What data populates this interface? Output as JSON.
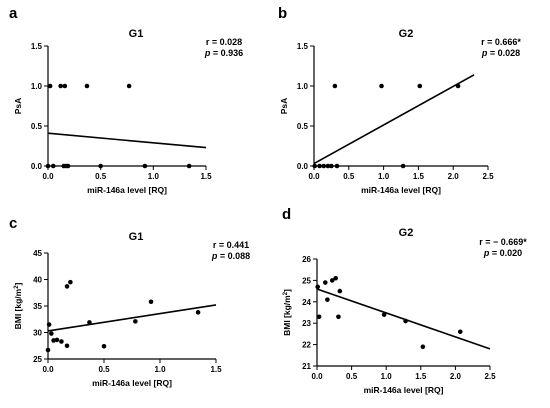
{
  "chart_data": [
    {
      "panel": "a",
      "type": "scatter",
      "title": "G1",
      "xlabel": "miR-146a level [RQ]",
      "ylabel": "PsA",
      "ylabel_sup": "",
      "xlim": [
        0,
        1.5
      ],
      "ylim": [
        0,
        1.5
      ],
      "xticks": [
        0.0,
        0.5,
        1.0,
        1.5
      ],
      "xtick_labels": [
        "0.0",
        "0.5",
        "1.0",
        "1.5"
      ],
      "yticks": [
        0.0,
        0.5,
        1.0,
        1.5
      ],
      "ytick_labels": [
        "0.0",
        "0.5",
        "1.0",
        "1.5"
      ],
      "stat_r": "r = 0.028",
      "stat_p": "= 0.936",
      "p_symbol": "p",
      "points": [
        {
          "x": 0.02,
          "y": 1.0
        },
        {
          "x": 0.12,
          "y": 1.0
        },
        {
          "x": 0.16,
          "y": 1.0
        },
        {
          "x": 0.37,
          "y": 1.0
        },
        {
          "x": 0.77,
          "y": 1.0
        },
        {
          "x": 0.0,
          "y": 0.0
        },
        {
          "x": 0.05,
          "y": 0.0
        },
        {
          "x": 0.15,
          "y": 0.0
        },
        {
          "x": 0.17,
          "y": 0.0
        },
        {
          "x": 0.19,
          "y": 0.0
        },
        {
          "x": 0.5,
          "y": 0.0
        },
        {
          "x": 0.92,
          "y": 0.0
        },
        {
          "x": 1.34,
          "y": 0.0
        }
      ],
      "line": [
        [
          0.0,
          0.41
        ],
        [
          1.5,
          0.23
        ]
      ]
    },
    {
      "panel": "b",
      "type": "scatter",
      "title": "G2",
      "xlabel": "miR-146a level [RQ]",
      "ylabel": "PsA",
      "ylabel_sup": "",
      "xlim": [
        0,
        2.5
      ],
      "ylim": [
        0,
        1.5
      ],
      "xticks": [
        0.0,
        0.5,
        1.0,
        1.5,
        2.0,
        2.5
      ],
      "xtick_labels": [
        "0.0",
        "0.5",
        "1.0",
        "1.5",
        "2.0",
        "2.5"
      ],
      "yticks": [
        0.0,
        0.5,
        1.0,
        1.5
      ],
      "ytick_labels": [
        "0.0",
        "0.5",
        "1.0",
        "1.5"
      ],
      "stat_r": "r = 0.666*",
      "stat_p": "= 0.028",
      "p_symbol": "p",
      "points": [
        {
          "x": 0.3,
          "y": 1.0
        },
        {
          "x": 0.97,
          "y": 1.0
        },
        {
          "x": 1.52,
          "y": 1.0
        },
        {
          "x": 2.07,
          "y": 1.0
        },
        {
          "x": 0.01,
          "y": 0.0
        },
        {
          "x": 0.08,
          "y": 0.0
        },
        {
          "x": 0.14,
          "y": 0.0
        },
        {
          "x": 0.2,
          "y": 0.0
        },
        {
          "x": 0.25,
          "y": 0.0
        },
        {
          "x": 0.33,
          "y": 0.0
        },
        {
          "x": 1.28,
          "y": 0.0
        }
      ],
      "line": [
        [
          0.0,
          0.03
        ],
        [
          2.3,
          1.14
        ]
      ]
    },
    {
      "panel": "c",
      "type": "scatter",
      "title": "G1",
      "xlabel": "miR-146a level [RQ]",
      "ylabel": "BMI [kg/m",
      "ylabel_sup": "2",
      "ylabel_end": "]",
      "xlim": [
        0,
        1.5
      ],
      "ylim": [
        25,
        45
      ],
      "xticks": [
        0.0,
        0.5,
        1.0,
        1.5
      ],
      "xtick_labels": [
        "0.0",
        "0.5",
        "1.0",
        "1.5"
      ],
      "yticks": [
        25,
        30,
        35,
        40,
        45
      ],
      "ytick_labels": [
        "25",
        "30",
        "35",
        "40",
        "45"
      ],
      "stat_r": "r = 0.441",
      "stat_p": "= 0.088",
      "p_symbol": "p",
      "points": [
        {
          "x": 0.0,
          "y": 26.7
        },
        {
          "x": 0.01,
          "y": 31.5
        },
        {
          "x": 0.03,
          "y": 29.8
        },
        {
          "x": 0.05,
          "y": 28.5
        },
        {
          "x": 0.08,
          "y": 28.6
        },
        {
          "x": 0.12,
          "y": 28.3
        },
        {
          "x": 0.17,
          "y": 38.7
        },
        {
          "x": 0.2,
          "y": 39.5
        },
        {
          "x": 0.17,
          "y": 27.5
        },
        {
          "x": 0.37,
          "y": 31.9
        },
        {
          "x": 0.5,
          "y": 27.4
        },
        {
          "x": 0.78,
          "y": 32.1
        },
        {
          "x": 0.92,
          "y": 35.8
        },
        {
          "x": 1.34,
          "y": 33.8
        }
      ],
      "line": [
        [
          0.0,
          30.3
        ],
        [
          1.5,
          35.2
        ]
      ]
    },
    {
      "panel": "d",
      "type": "scatter",
      "title": "G2",
      "xlabel": "miR-146a level [RQ]",
      "ylabel": "BMI [kg/m",
      "ylabel_sup": "2",
      "ylabel_end": "]",
      "xlim": [
        0,
        2.5
      ],
      "ylim": [
        21,
        26
      ],
      "xticks": [
        0.0,
        0.5,
        1.0,
        1.5,
        2.0,
        2.5
      ],
      "xtick_labels": [
        "0.0",
        "0.5",
        "1.0",
        "1.5",
        "2.0",
        "2.5"
      ],
      "yticks": [
        21,
        22,
        23,
        24,
        25,
        26
      ],
      "ytick_labels": [
        "21",
        "22",
        "23",
        "24",
        "25",
        "26"
      ],
      "stat_r": "r = − 0.669*",
      "stat_p": "= 0.020",
      "p_symbol": "p",
      "points": [
        {
          "x": 0.01,
          "y": 24.7
        },
        {
          "x": 0.03,
          "y": 23.3
        },
        {
          "x": 0.12,
          "y": 24.9
        },
        {
          "x": 0.15,
          "y": 24.1
        },
        {
          "x": 0.22,
          "y": 25.0
        },
        {
          "x": 0.27,
          "y": 25.1
        },
        {
          "x": 0.31,
          "y": 23.3
        },
        {
          "x": 0.33,
          "y": 24.5
        },
        {
          "x": 0.97,
          "y": 23.4
        },
        {
          "x": 1.28,
          "y": 23.1
        },
        {
          "x": 1.53,
          "y": 21.9
        },
        {
          "x": 2.07,
          "y": 22.6
        }
      ],
      "line": [
        [
          0.0,
          24.6
        ],
        [
          2.5,
          21.8
        ]
      ]
    }
  ]
}
